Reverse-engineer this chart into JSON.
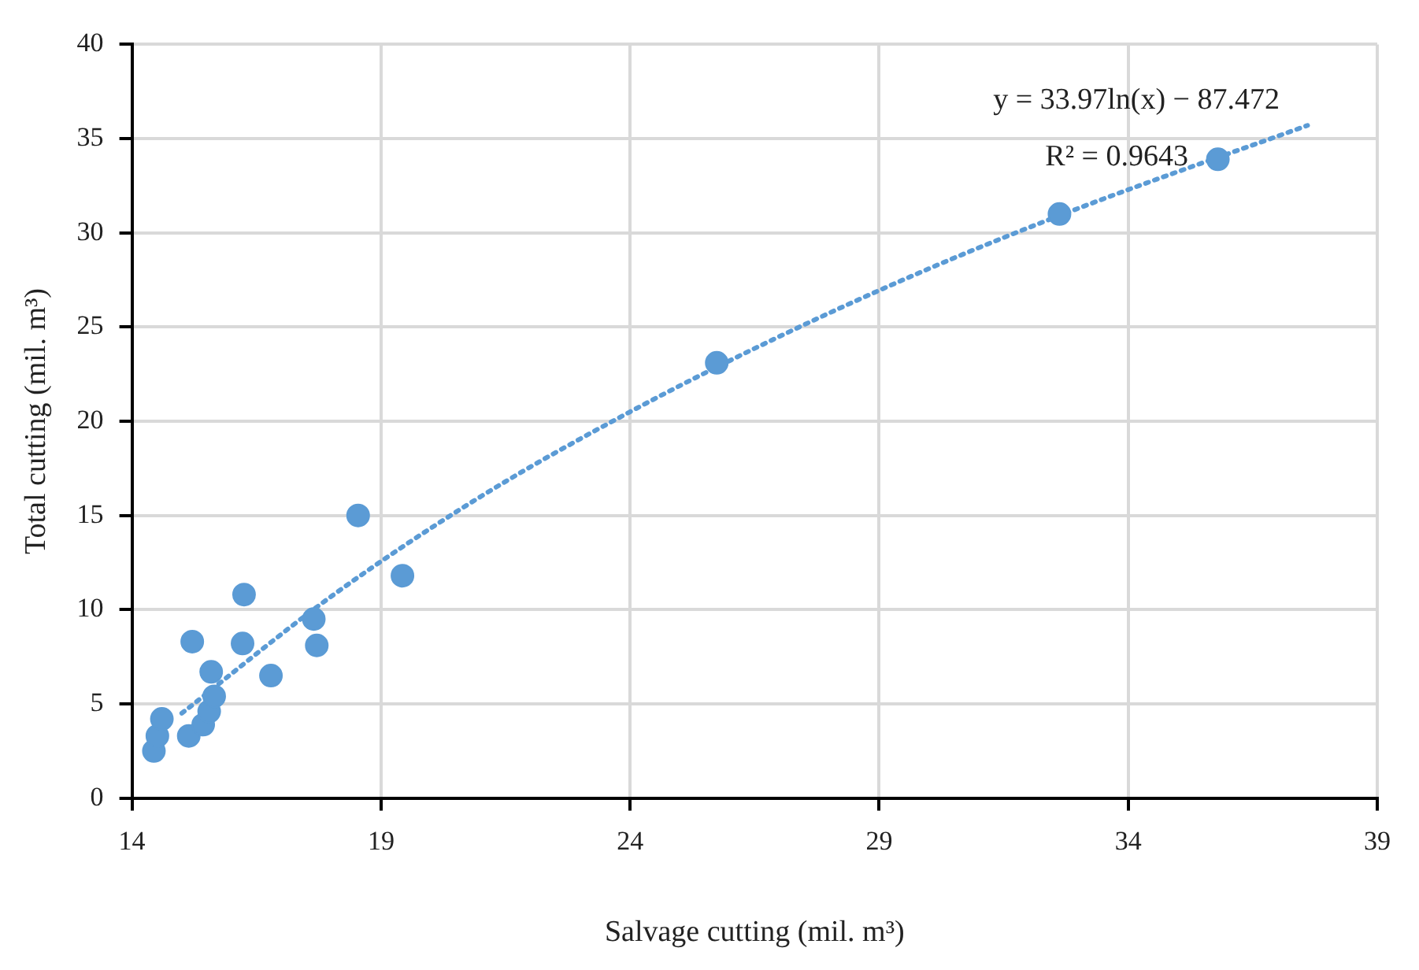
{
  "chart_data": {
    "type": "scatter",
    "xlabel": "Salvage cutting (mil. m³)",
    "ylabel": "Total cutting (mil. m³)",
    "xlim": [
      14,
      39
    ],
    "xticks": [
      14,
      19,
      24,
      29,
      34,
      39
    ],
    "ylim": [
      0,
      40
    ],
    "yticks": [
      0,
      5,
      10,
      15,
      20,
      25,
      30,
      35,
      40
    ],
    "grid": true,
    "marker": "circle",
    "annotations": [
      "y = 33.97ln(x) − 87.472",
      "R² = 0.9643"
    ],
    "series": [
      {
        "color": "#5b9bd5",
        "x": [
          14.44,
          14.51,
          14.6,
          15.14,
          15.21,
          15.43,
          15.55,
          15.65,
          15.59,
          16.22,
          16.25,
          16.79,
          17.65,
          17.71,
          18.54,
          19.43,
          25.74,
          32.62,
          35.8
        ],
        "values": [
          2.5,
          3.3,
          4.2,
          3.3,
          8.3,
          3.9,
          4.6,
          5.4,
          6.7,
          8.2,
          10.8,
          6.5,
          9.5,
          8.1,
          15,
          11.8,
          23.1,
          31,
          33.9
        ]
      },
      {
        "type": "line",
        "color": "#5b9bd5",
        "line_style": "dotted",
        "marker": "none",
        "x": [
          15,
          18,
          21,
          24,
          27,
          30,
          33,
          37.6
        ],
        "values": [
          4.5,
          10.7,
          16,
          20.5,
          24.5,
          28.1,
          31.3,
          35.7
        ]
      }
    ]
  }
}
